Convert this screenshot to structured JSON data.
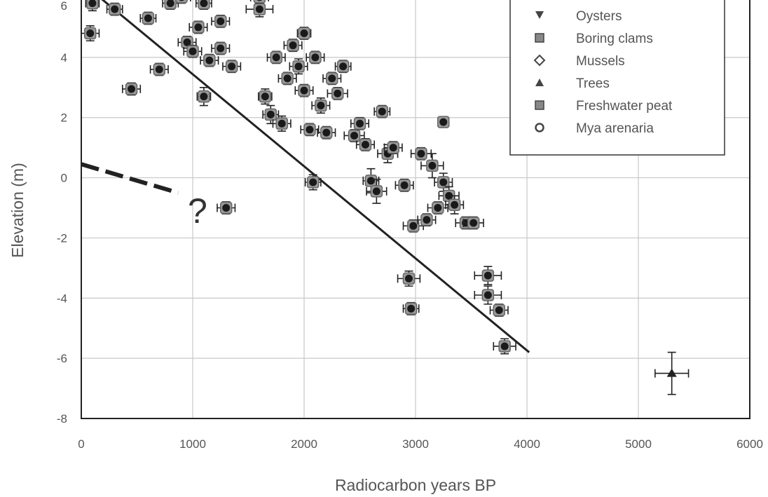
{
  "chart_data": {
    "type": "scatter",
    "xlabel": "Radiocarbon years BP",
    "ylabel": "Elevation (m)",
    "xlim": [
      0,
      6000
    ],
    "ylim": [
      -8,
      6
    ],
    "xticks": [
      "0",
      "1000",
      "2000",
      "3000",
      "4000",
      "5000",
      "6000"
    ],
    "yticks": [
      "-8",
      "-6",
      "-4",
      "-2",
      "0",
      "2",
      "4",
      "6"
    ],
    "grid": true,
    "legend_position": "top-right",
    "legend": [
      {
        "label": "Oysters",
        "marker": "triangle-down"
      },
      {
        "label": "Boring clams",
        "marker": "square"
      },
      {
        "label": "Mussels",
        "marker": "diamond"
      },
      {
        "label": "Trees",
        "marker": "triangle-up"
      },
      {
        "label": "Freshwater peat",
        "marker": "square"
      },
      {
        "label": "Mya arenaria",
        "marker": "circle"
      }
    ],
    "annotation": "?",
    "fit_line": {
      "x": [
        0,
        4020
      ],
      "y": [
        6.5,
        -5.8
      ]
    },
    "dashed_line": {
      "x": [
        0,
        870
      ],
      "y": [
        0.45,
        -0.5
      ]
    },
    "points": [
      {
        "x": 100,
        "y": 5.8,
        "xerr": 60,
        "yerr": 0.25
      },
      {
        "x": 80,
        "y": 4.8,
        "xerr": 80,
        "yerr": 0.25
      },
      {
        "x": 300,
        "y": 5.6,
        "xerr": 70,
        "yerr": 0.2
      },
      {
        "x": 450,
        "y": 2.95,
        "xerr": 80,
        "yerr": 0.2
      },
      {
        "x": 600,
        "y": 5.3,
        "xerr": 70,
        "yerr": 0.2
      },
      {
        "x": 700,
        "y": 3.6,
        "xerr": 80,
        "yerr": 0.2
      },
      {
        "x": 800,
        "y": 5.8,
        "xerr": 70,
        "yerr": 0.2
      },
      {
        "x": 900,
        "y": 6.0,
        "xerr": 80,
        "yerr": 0.2
      },
      {
        "x": 950,
        "y": 4.5,
        "xerr": 80,
        "yerr": 0.2
      },
      {
        "x": 1000,
        "y": 4.2,
        "xerr": 80,
        "yerr": 0.2
      },
      {
        "x": 1050,
        "y": 5.0,
        "xerr": 80,
        "yerr": 0.2
      },
      {
        "x": 1100,
        "y": 2.7,
        "xerr": 60,
        "yerr": 0.3
      },
      {
        "x": 1100,
        "y": 5.8,
        "xerr": 70,
        "yerr": 0.2
      },
      {
        "x": 1150,
        "y": 3.9,
        "xerr": 80,
        "yerr": 0.2
      },
      {
        "x": 1250,
        "y": 5.2,
        "xerr": 80,
        "yerr": 0.2
      },
      {
        "x": 1250,
        "y": 4.3,
        "xerr": 80,
        "yerr": 0.2
      },
      {
        "x": 1300,
        "y": -1.0,
        "xerr": 80,
        "yerr": 0.2
      },
      {
        "x": 1350,
        "y": 3.7,
        "xerr": 80,
        "yerr": 0.2
      },
      {
        "x": 1600,
        "y": 5.6,
        "xerr": 120,
        "yerr": 0.25
      },
      {
        "x": 1600,
        "y": 6.0,
        "xerr": 80,
        "yerr": 0.2
      },
      {
        "x": 1650,
        "y": 2.7,
        "xerr": 60,
        "yerr": 0.25
      },
      {
        "x": 1700,
        "y": 2.1,
        "xerr": 70,
        "yerr": 0.3
      },
      {
        "x": 1750,
        "y": 4.0,
        "xerr": 80,
        "yerr": 0.2
      },
      {
        "x": 1800,
        "y": 1.8,
        "xerr": 80,
        "yerr": 0.25
      },
      {
        "x": 1850,
        "y": 3.3,
        "xerr": 80,
        "yerr": 0.2
      },
      {
        "x": 1900,
        "y": 4.4,
        "xerr": 80,
        "yerr": 0.2
      },
      {
        "x": 1950,
        "y": 3.7,
        "xerr": 80,
        "yerr": 0.25
      },
      {
        "x": 2000,
        "y": 2.9,
        "xerr": 80,
        "yerr": 0.2
      },
      {
        "x": 2000,
        "y": 4.8,
        "xerr": 60,
        "yerr": 0.2
      },
      {
        "x": 2050,
        "y": 1.6,
        "xerr": 80,
        "yerr": 0.2
      },
      {
        "x": 2080,
        "y": -0.15,
        "xerr": 70,
        "yerr": 0.25
      },
      {
        "x": 2100,
        "y": 4.0,
        "xerr": 80,
        "yerr": 0.2
      },
      {
        "x": 2150,
        "y": 2.4,
        "xerr": 80,
        "yerr": 0.25
      },
      {
        "x": 2200,
        "y": 1.5,
        "xerr": 80,
        "yerr": 0.2
      },
      {
        "x": 2250,
        "y": 3.3,
        "xerr": 80,
        "yerr": 0.2
      },
      {
        "x": 2300,
        "y": 2.8,
        "xerr": 90,
        "yerr": 0.2
      },
      {
        "x": 2350,
        "y": 3.7,
        "xerr": 70,
        "yerr": 0.2
      },
      {
        "x": 2450,
        "y": 1.4,
        "xerr": 90,
        "yerr": 0.2
      },
      {
        "x": 2500,
        "y": 1.8,
        "xerr": 80,
        "yerr": 0.2
      },
      {
        "x": 2550,
        "y": 1.1,
        "xerr": 80,
        "yerr": 0.2
      },
      {
        "x": 2600,
        "y": -0.1,
        "xerr": 70,
        "yerr": 0.4
      },
      {
        "x": 2650,
        "y": -0.45,
        "xerr": 90,
        "yerr": 0.4
      },
      {
        "x": 2700,
        "y": 2.2,
        "xerr": 70,
        "yerr": 0.2
      },
      {
        "x": 2750,
        "y": 0.8,
        "xerr": 90,
        "yerr": 0.3
      },
      {
        "x": 2800,
        "y": 1.0,
        "xerr": 80,
        "yerr": 0.2
      },
      {
        "x": 2900,
        "y": -0.25,
        "xerr": 80,
        "yerr": 0.2
      },
      {
        "x": 2940,
        "y": -3.35,
        "xerr": 100,
        "yerr": 0.25
      },
      {
        "x": 2960,
        "y": -4.35,
        "xerr": 70,
        "yerr": 0.2
      },
      {
        "x": 2980,
        "y": -1.6,
        "xerr": 90,
        "yerr": 0.2
      },
      {
        "x": 3050,
        "y": 0.8,
        "xerr": 90,
        "yerr": 0.2
      },
      {
        "x": 3100,
        "y": -1.4,
        "xerr": 80,
        "yerr": 0.2
      },
      {
        "x": 3150,
        "y": 0.4,
        "xerr": 100,
        "yerr": 0.4
      },
      {
        "x": 3200,
        "y": -1.0,
        "xerr": 90,
        "yerr": 0.2
      },
      {
        "x": 3250,
        "y": -0.15,
        "xerr": 80,
        "yerr": 0.3
      },
      {
        "x": 3250,
        "y": 1.85,
        "xerr": 50,
        "yerr": 0.15
      },
      {
        "x": 3300,
        "y": -0.6,
        "xerr": 90,
        "yerr": 0.3
      },
      {
        "x": 3350,
        "y": -0.9,
        "xerr": 80,
        "yerr": 0.3
      },
      {
        "x": 3450,
        "y": -1.5,
        "xerr": 90,
        "yerr": 0.2
      },
      {
        "x": 3520,
        "y": -1.5,
        "xerr": 90,
        "yerr": 0.2
      },
      {
        "x": 3650,
        "y": -3.25,
        "xerr": 120,
        "yerr": 0.3
      },
      {
        "x": 3650,
        "y": -3.9,
        "xerr": 120,
        "yerr": 0.3
      },
      {
        "x": 3750,
        "y": -4.4,
        "xerr": 80,
        "yerr": 0.2
      },
      {
        "x": 3800,
        "y": -5.6,
        "xerr": 100,
        "yerr": 0.25
      },
      {
        "x": 5300,
        "y": -6.5,
        "xerr": 150,
        "yerr": 0.7
      }
    ]
  }
}
